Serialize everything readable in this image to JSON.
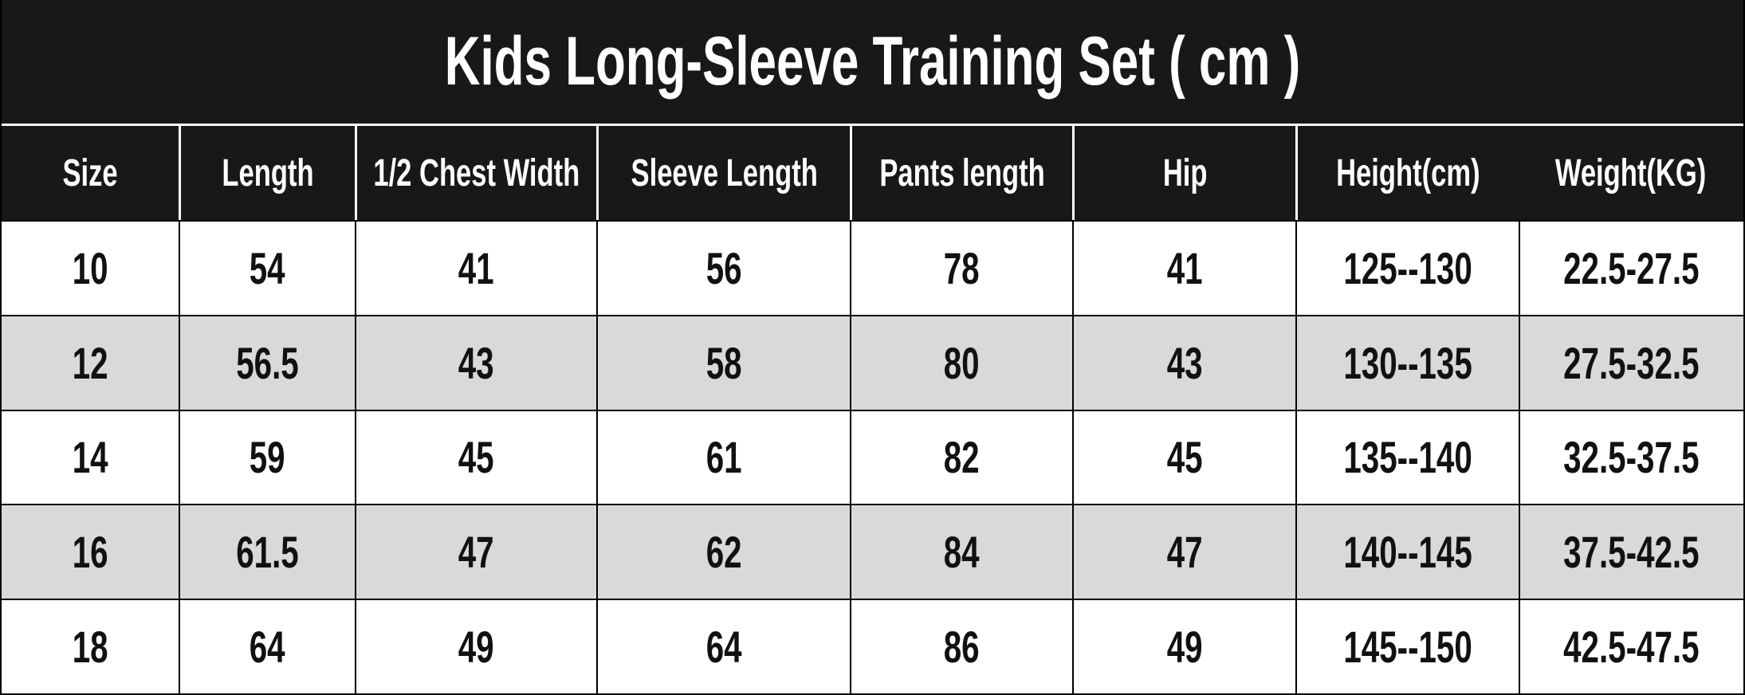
{
  "page": {
    "title": "Kids Long-Sleeve Training Set ( cm )"
  },
  "colors": {
    "title_bar_bg": "#181818",
    "header_bg": "#181818",
    "header_text": "#ffffff",
    "header_divider": "#ffffff",
    "row_white": "#ffffff",
    "row_gray": "#d9d9d9",
    "grid_line": "#000000",
    "data_text": "#111111"
  },
  "chart_data": {
    "type": "table",
    "title": "Kids Long-Sleeve Training Set ( cm )",
    "units": "cm",
    "columns": [
      "Size",
      "Length",
      "1/2 Chest Width",
      "Sleeve Length",
      "Pants length",
      "Hip",
      "Height(cm)",
      "Weight(KG)"
    ],
    "rows": [
      [
        "10",
        "54",
        "41",
        "56",
        "78",
        "41",
        "125--130",
        "22.5-27.5"
      ],
      [
        "12",
        "56.5",
        "43",
        "58",
        "80",
        "43",
        "130--135",
        "27.5-32.5"
      ],
      [
        "14",
        "59",
        "45",
        "61",
        "82",
        "45",
        "135--140",
        "32.5-37.5"
      ],
      [
        "16",
        "61.5",
        "47",
        "62",
        "84",
        "47",
        "140--145",
        "37.5-42.5"
      ],
      [
        "18",
        "64",
        "49",
        "64",
        "86",
        "49",
        "145--150",
        "42.5-47.5"
      ]
    ],
    "layout": {
      "striping": "alternating row backgrounds starting white, even rows light gray",
      "header_style": "black bar with white condensed bold text, white cell dividers, no divider between Height(cm) and Weight(KG)",
      "grid": "thin black lines between data cells and rows"
    }
  }
}
